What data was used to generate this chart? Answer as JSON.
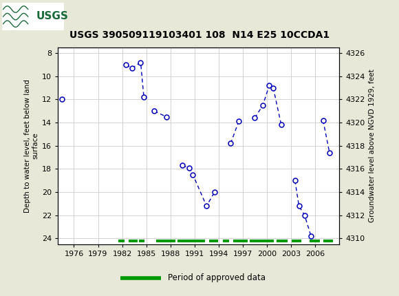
{
  "title": "USGS 390509119103401 108  N14 E25 10CCDA1",
  "ylabel_left": "Depth to water level, feet below land\nsurface",
  "ylabel_right": "Groundwater level above NGVD 1929, feet",
  "header_color": "#1b6b3a",
  "background_color": "#e8e8d8",
  "plot_bg_color": "#ffffff",
  "data_groups": [
    [
      [
        1974.5,
        12.0
      ]
    ],
    [
      [
        1982.5,
        9.0
      ],
      [
        1983.2,
        9.3
      ],
      [
        1984.3,
        8.8
      ],
      [
        1984.7,
        11.8
      ]
    ],
    [
      [
        1986.0,
        13.0
      ],
      [
        1987.5,
        13.5
      ]
    ],
    [
      [
        1989.5,
        17.7
      ],
      [
        1990.3,
        17.9
      ],
      [
        1990.8,
        18.5
      ],
      [
        1992.5,
        21.2
      ],
      [
        1993.5,
        20.0
      ]
    ],
    [
      [
        1995.5,
        15.8
      ],
      [
        1996.5,
        13.9
      ]
    ],
    [
      [
        1998.5,
        13.6
      ],
      [
        1999.5,
        12.5
      ],
      [
        2000.3,
        10.8
      ],
      [
        2000.8,
        11.0
      ],
      [
        2001.8,
        14.2
      ]
    ],
    [
      [
        2003.5,
        19.0
      ],
      [
        2004.0,
        21.2
      ],
      [
        2004.7,
        22.0
      ],
      [
        2005.5,
        23.8
      ]
    ],
    [
      [
        2007.0,
        13.8
      ],
      [
        2007.8,
        16.6
      ]
    ]
  ],
  "line_color": "#0000bb",
  "xlim": [
    1974,
    2009
  ],
  "ylim_left": [
    24.5,
    7.5
  ],
  "ylim_right": [
    4309.5,
    4326.5
  ],
  "xticks": [
    1976,
    1979,
    1982,
    1985,
    1988,
    1991,
    1994,
    1997,
    2000,
    2003,
    2006
  ],
  "yticks_left": [
    8,
    10,
    12,
    14,
    16,
    18,
    20,
    22,
    24
  ],
  "yticks_right": [
    4310,
    4312,
    4314,
    4316,
    4318,
    4320,
    4322,
    4324,
    4326
  ],
  "grid_color": "#cccccc",
  "approved_segments": [
    [
      1981.5,
      1982.3
    ],
    [
      1982.8,
      1983.9
    ],
    [
      1984.1,
      1984.8
    ],
    [
      1986.2,
      1988.6
    ],
    [
      1988.9,
      1992.3
    ],
    [
      1992.8,
      1993.9
    ],
    [
      1994.5,
      1995.3
    ],
    [
      1995.8,
      1997.6
    ],
    [
      1997.9,
      2000.9
    ],
    [
      2001.2,
      2002.6
    ],
    [
      2003.1,
      2004.3
    ],
    [
      2005.3,
      2006.6
    ],
    [
      2007.0,
      2008.2
    ]
  ],
  "approved_y": 24.2,
  "approved_color": "#009900"
}
